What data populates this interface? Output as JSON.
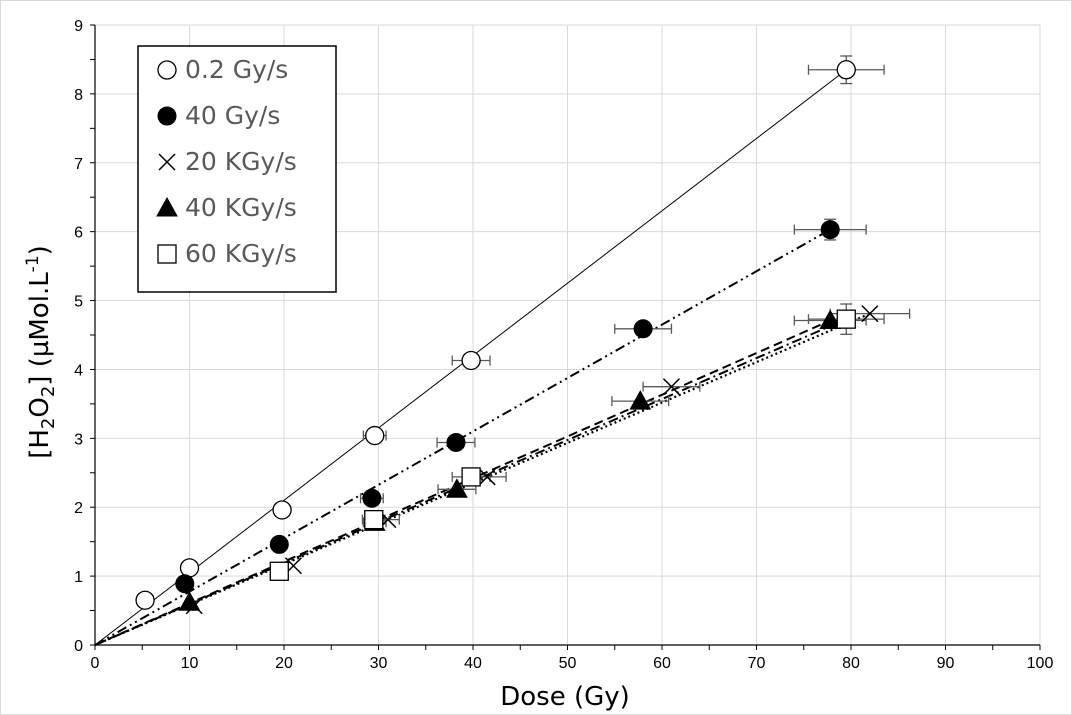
{
  "chart_data": {
    "type": "scatter",
    "xlabel": "Dose (Gy)",
    "ylabel_parts": [
      "[H",
      "2",
      "O",
      "2",
      "] (µMol.L",
      "-1",
      ")"
    ],
    "xlim": [
      0,
      100
    ],
    "ylim": [
      0,
      9
    ],
    "xticks": [
      "0",
      "10",
      "20",
      "30",
      "40",
      "50",
      "60",
      "70",
      "80",
      "90",
      "100"
    ],
    "yticks": [
      "0",
      "1",
      "2",
      "3",
      "4",
      "5",
      "6",
      "7",
      "8",
      "9"
    ],
    "grid": true,
    "legend_position": "top-left",
    "series": [
      {
        "name": "0.2 Gy/s",
        "marker": "open-circle",
        "line": "solid-thin",
        "x": [
          5.3,
          10,
          19.8,
          29.6,
          39.8,
          79.5
        ],
        "y": [
          0.65,
          1.12,
          1.96,
          3.04,
          4.13,
          8.35
        ],
        "xerr": [
          0,
          0,
          0,
          1.2,
          2.0,
          4.0
        ],
        "yerr": [
          0,
          0,
          0,
          0,
          0,
          0.2
        ],
        "fit": [
          [
            0,
            0
          ],
          [
            79.5,
            8.35
          ]
        ]
      },
      {
        "name": "40 Gy/s",
        "marker": "filled-circle",
        "line": "dash-dot-dot",
        "x": [
          9.5,
          19.5,
          29.3,
          38.2,
          58.0,
          77.8
        ],
        "y": [
          0.89,
          1.46,
          2.13,
          2.94,
          4.59,
          6.03
        ],
        "xerr": [
          0,
          0,
          1.2,
          2.0,
          3.0,
          3.8
        ],
        "yerr": [
          0,
          0,
          0,
          0,
          0,
          0.15
        ],
        "fit": [
          [
            0,
            0
          ],
          [
            77.8,
            6.03
          ]
        ]
      },
      {
        "name": "20 KGy/s",
        "marker": "cross",
        "line": "dotted",
        "x": [
          10.5,
          21.0,
          31.0,
          41.5,
          61.0,
          82.0
        ],
        "y": [
          0.57,
          1.15,
          1.82,
          2.44,
          3.75,
          4.81
        ],
        "xerr": [
          0,
          0,
          1.2,
          2.0,
          3.0,
          4.2
        ],
        "yerr": [
          0,
          0,
          0,
          0,
          0,
          0
        ],
        "fit": [
          [
            0,
            0
          ],
          [
            82.0,
            4.81
          ]
        ]
      },
      {
        "name": "40 KGy/s",
        "marker": "filled-triangle",
        "line": "dashed",
        "x": [
          10,
          29.6,
          38.3,
          57.7,
          77.8
        ],
        "y": [
          0.62,
          1.78,
          2.26,
          3.54,
          4.71
        ],
        "xerr": [
          0,
          1.2,
          2.0,
          3.0,
          3.8
        ],
        "yerr": [
          0,
          0,
          0,
          0,
          0
        ],
        "fit": [
          [
            0,
            0
          ],
          [
            77.8,
            4.71
          ]
        ]
      },
      {
        "name": "60 KGy/s",
        "marker": "open-square",
        "line": "dash-dot",
        "x": [
          19.5,
          29.5,
          39.8,
          79.5
        ],
        "y": [
          1.07,
          1.82,
          2.44,
          4.73
        ],
        "xerr": [
          0,
          1.2,
          2.0,
          4.0
        ],
        "yerr": [
          0,
          0,
          0,
          0.22
        ],
        "fit": [
          [
            0,
            0
          ],
          [
            79.5,
            4.73
          ]
        ]
      }
    ]
  }
}
